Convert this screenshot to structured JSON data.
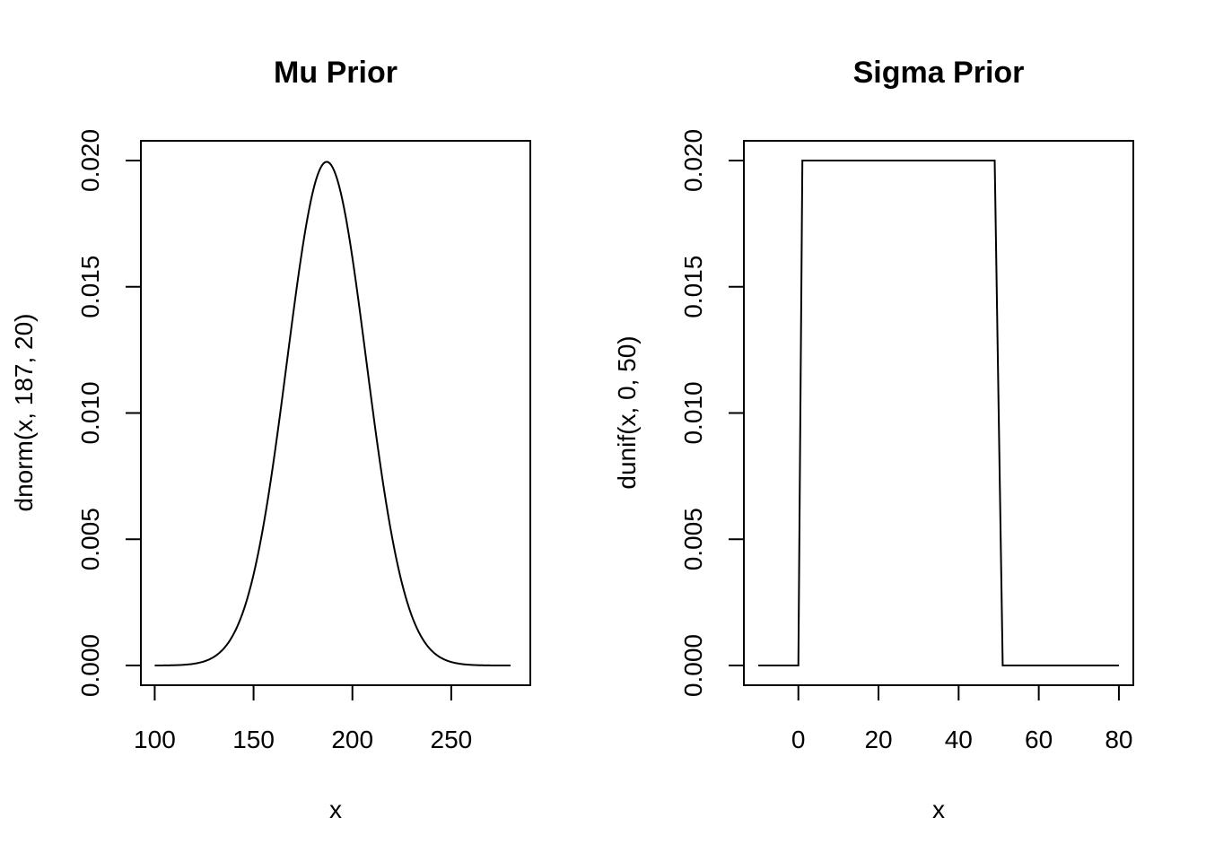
{
  "chart_data": [
    {
      "type": "line",
      "title": "Mu Prior",
      "xlabel": "x",
      "ylabel": "dnorm(x, 187, 20)",
      "xlim": [
        93,
        290
      ],
      "ylim": [
        -0.00078,
        0.02078
      ],
      "x_ticks": [
        100,
        150,
        200,
        250
      ],
      "y_ticks": [
        0.0,
        0.005,
        0.01,
        0.015,
        0.02
      ],
      "y_tick_labels": [
        "0.000",
        "0.005",
        "0.010",
        "0.015",
        "0.020"
      ],
      "series": [
        {
          "distribution": "normal",
          "mean": 187,
          "sd": 20,
          "x_range": [
            100,
            280
          ]
        }
      ],
      "grid": false,
      "legend": "none"
    },
    {
      "type": "line",
      "title": "Sigma Prior",
      "xlabel": "x",
      "ylabel": "dunif(x, 0, 50)",
      "xlim": [
        -13.6,
        83.6
      ],
      "ylim": [
        -0.00078,
        0.02078
      ],
      "x_ticks": [
        0,
        20,
        40,
        60,
        80
      ],
      "y_ticks": [
        0.0,
        0.005,
        0.01,
        0.015,
        0.02
      ],
      "y_tick_labels": [
        "0.000",
        "0.005",
        "0.010",
        "0.015",
        "0.020"
      ],
      "series": [
        {
          "x": [
            -10,
            0,
            1,
            49,
            51,
            80
          ],
          "y": [
            0,
            0,
            0.02,
            0.02,
            0,
            0
          ]
        }
      ],
      "grid": false,
      "legend": "none"
    }
  ]
}
